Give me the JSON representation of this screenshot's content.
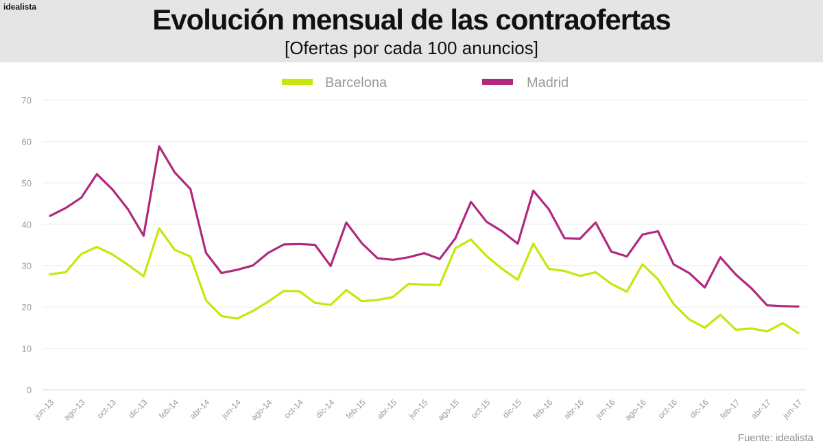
{
  "brand": "idealista",
  "title": "Evolución mensual de las contraofertas",
  "subtitle": "[Ofertas por cada 100 anuncios]",
  "source": "Fuente: idealista",
  "chart_data": {
    "type": "line",
    "title": "Evolución mensual de las contraofertas",
    "subtitle": "[Ofertas por cada 100 anuncios]",
    "xlabel": "",
    "ylabel": "",
    "ylim": [
      0,
      70
    ],
    "yticks": [
      0,
      10,
      20,
      30,
      40,
      50,
      60,
      70
    ],
    "grid": true,
    "legend_position": "top-center",
    "x_labels": [
      "jun-13",
      "ago-13",
      "oct-13",
      "dic-13",
      "feb-14",
      "abr-14",
      "jun-14",
      "ago-14",
      "oct-14",
      "dic-14",
      "feb-15",
      "abr-15",
      "jun-15",
      "ago-15",
      "oct-15",
      "dic-15",
      "feb-16",
      "abr-16",
      "jun-16",
      "ago-16",
      "oct-16",
      "dic-16",
      "feb-17",
      "abr-17",
      "jun-17"
    ],
    "categories": [
      "jun-13",
      "jul-13",
      "ago-13",
      "sep-13",
      "oct-13",
      "nov-13",
      "dic-13",
      "ene-14",
      "feb-14",
      "mar-14",
      "abr-14",
      "may-14",
      "jun-14",
      "jul-14",
      "ago-14",
      "sep-14",
      "oct-14",
      "nov-14",
      "dic-14",
      "ene-15",
      "feb-15",
      "mar-15",
      "abr-15",
      "may-15",
      "jun-15",
      "jul-15",
      "ago-15",
      "sep-15",
      "oct-15",
      "nov-15",
      "dic-15",
      "ene-16",
      "feb-16",
      "mar-16",
      "abr-16",
      "may-16",
      "jun-16",
      "jul-16",
      "ago-16",
      "sep-16",
      "oct-16",
      "nov-16",
      "dic-16",
      "ene-17",
      "feb-17",
      "mar-17",
      "abr-17",
      "may-17",
      "jun-17"
    ],
    "series": [
      {
        "name": "Barcelona",
        "color": "#c8e60b",
        "values": [
          27.9,
          28.4,
          32.8,
          34.5,
          32.7,
          30.2,
          27.4,
          39.0,
          33.8,
          32.2,
          21.6,
          17.8,
          17.2,
          19.0,
          21.3,
          23.9,
          23.8,
          21.0,
          20.5,
          24.1,
          21.4,
          21.7,
          22.4,
          25.6,
          25.4,
          25.3,
          34.2,
          36.3,
          32.3,
          29.2,
          26.6,
          35.3,
          29.2,
          28.7,
          27.5,
          28.4,
          25.6,
          23.7,
          30.3,
          26.7,
          20.7,
          17.0,
          15.0,
          18.1,
          14.5,
          14.8,
          14.1,
          16.1,
          13.7
        ]
      },
      {
        "name": "Madrid",
        "color": "#b0297f",
        "values": [
          42.0,
          43.9,
          46.4,
          52.1,
          48.4,
          43.6,
          37.2,
          58.8,
          52.5,
          48.5,
          33.1,
          28.2,
          29.0,
          30.0,
          33.1,
          35.1,
          35.2,
          35.0,
          29.9,
          40.4,
          35.4,
          31.8,
          31.4,
          32.0,
          33.0,
          31.6,
          36.6,
          45.4,
          40.6,
          38.3,
          35.3,
          48.1,
          43.6,
          36.6,
          36.5,
          40.4,
          33.4,
          32.2,
          37.5,
          38.3,
          30.3,
          28.2,
          24.7,
          32.0,
          27.8,
          24.5,
          20.4,
          20.2,
          20.1
        ]
      }
    ]
  }
}
